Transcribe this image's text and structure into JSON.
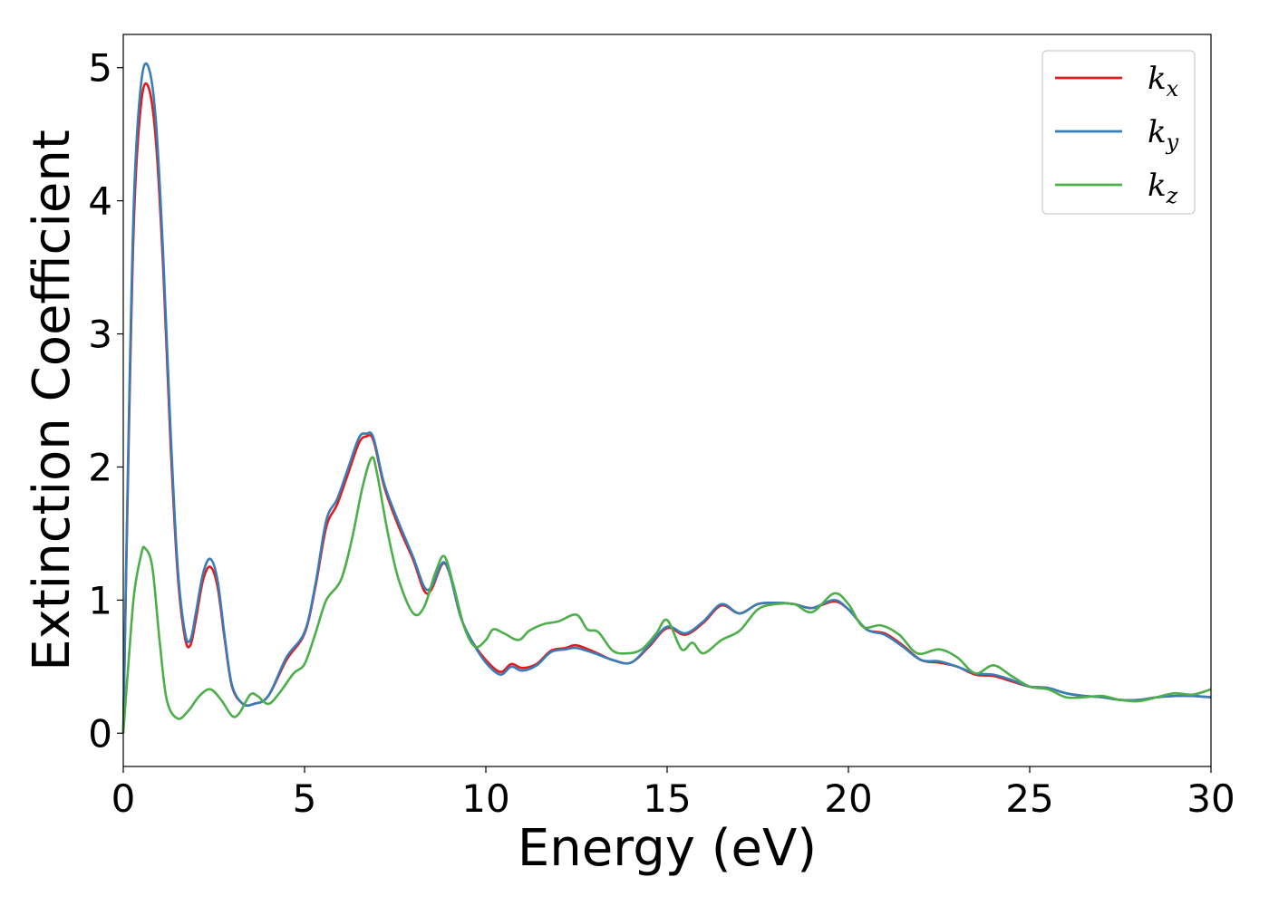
{
  "chart_data": {
    "type": "line",
    "title": "",
    "xlabel": "Energy (eV)",
    "ylabel": "Extinction Coefficient",
    "xlim": [
      0,
      30
    ],
    "ylim": [
      -0.25,
      5.25
    ],
    "xticks": [
      0,
      5,
      10,
      15,
      20,
      25,
      30
    ],
    "yticks": [
      0,
      1,
      2,
      3,
      4,
      5
    ],
    "grid": false,
    "legend_position": "top-right",
    "series": [
      {
        "name": "k",
        "subscript": "x",
        "color": "#e41a1c",
        "points": [
          [
            0,
            0
          ],
          [
            0.15,
            2.2
          ],
          [
            0.3,
            3.9
          ],
          [
            0.5,
            4.75
          ],
          [
            0.7,
            4.85
          ],
          [
            0.9,
            4.45
          ],
          [
            1.1,
            3.5
          ],
          [
            1.3,
            2.2
          ],
          [
            1.5,
            1.2
          ],
          [
            1.7,
            0.72
          ],
          [
            1.85,
            0.66
          ],
          [
            2.0,
            0.85
          ],
          [
            2.2,
            1.15
          ],
          [
            2.4,
            1.25
          ],
          [
            2.6,
            1.1
          ],
          [
            2.8,
            0.7
          ],
          [
            3.0,
            0.35
          ],
          [
            3.3,
            0.22
          ],
          [
            3.6,
            0.22
          ],
          [
            4.0,
            0.28
          ],
          [
            4.5,
            0.55
          ],
          [
            5.0,
            0.75
          ],
          [
            5.3,
            1.1
          ],
          [
            5.6,
            1.55
          ],
          [
            5.9,
            1.72
          ],
          [
            6.2,
            1.95
          ],
          [
            6.5,
            2.18
          ],
          [
            6.7,
            2.23
          ],
          [
            6.9,
            2.2
          ],
          [
            7.2,
            1.85
          ],
          [
            7.6,
            1.55
          ],
          [
            8.0,
            1.3
          ],
          [
            8.3,
            1.07
          ],
          [
            8.5,
            1.08
          ],
          [
            8.8,
            1.27
          ],
          [
            9.0,
            1.2
          ],
          [
            9.3,
            0.88
          ],
          [
            9.6,
            0.7
          ],
          [
            10.0,
            0.55
          ],
          [
            10.4,
            0.46
          ],
          [
            10.7,
            0.52
          ],
          [
            11.0,
            0.49
          ],
          [
            11.4,
            0.52
          ],
          [
            11.8,
            0.62
          ],
          [
            12.2,
            0.64
          ],
          [
            12.5,
            0.66
          ],
          [
            13.0,
            0.61
          ],
          [
            13.5,
            0.55
          ],
          [
            14.0,
            0.53
          ],
          [
            14.5,
            0.65
          ],
          [
            15.0,
            0.79
          ],
          [
            15.5,
            0.74
          ],
          [
            16.0,
            0.83
          ],
          [
            16.5,
            0.96
          ],
          [
            17.0,
            0.9
          ],
          [
            17.5,
            0.97
          ],
          [
            18.0,
            0.98
          ],
          [
            18.5,
            0.97
          ],
          [
            19.0,
            0.94
          ],
          [
            19.6,
            0.99
          ],
          [
            20.0,
            0.93
          ],
          [
            20.5,
            0.78
          ],
          [
            21.0,
            0.75
          ],
          [
            21.5,
            0.66
          ],
          [
            22.0,
            0.55
          ],
          [
            22.5,
            0.53
          ],
          [
            23.0,
            0.5
          ],
          [
            23.5,
            0.44
          ],
          [
            24.0,
            0.43
          ],
          [
            24.5,
            0.39
          ],
          [
            25.0,
            0.35
          ],
          [
            25.5,
            0.34
          ],
          [
            26.0,
            0.3
          ],
          [
            26.5,
            0.28
          ],
          [
            27.0,
            0.27
          ],
          [
            27.5,
            0.25
          ],
          [
            28.0,
            0.25
          ],
          [
            28.5,
            0.27
          ],
          [
            29.0,
            0.28
          ],
          [
            29.5,
            0.28
          ],
          [
            30.0,
            0.27
          ]
        ]
      },
      {
        "name": "k",
        "subscript": "y",
        "color": "#377eb8",
        "points": [
          [
            0,
            0
          ],
          [
            0.15,
            2.3
          ],
          [
            0.3,
            4.05
          ],
          [
            0.5,
            4.9
          ],
          [
            0.7,
            5.0
          ],
          [
            0.9,
            4.6
          ],
          [
            1.1,
            3.6
          ],
          [
            1.3,
            2.3
          ],
          [
            1.5,
            1.25
          ],
          [
            1.7,
            0.76
          ],
          [
            1.85,
            0.7
          ],
          [
            2.0,
            0.9
          ],
          [
            2.2,
            1.2
          ],
          [
            2.4,
            1.31
          ],
          [
            2.6,
            1.15
          ],
          [
            2.8,
            0.72
          ],
          [
            3.0,
            0.36
          ],
          [
            3.3,
            0.22
          ],
          [
            3.6,
            0.22
          ],
          [
            4.0,
            0.28
          ],
          [
            4.5,
            0.57
          ],
          [
            5.0,
            0.76
          ],
          [
            5.3,
            1.12
          ],
          [
            5.6,
            1.6
          ],
          [
            5.9,
            1.76
          ],
          [
            6.2,
            1.99
          ],
          [
            6.5,
            2.22
          ],
          [
            6.7,
            2.25
          ],
          [
            6.9,
            2.22
          ],
          [
            7.2,
            1.87
          ],
          [
            7.6,
            1.58
          ],
          [
            8.0,
            1.32
          ],
          [
            8.3,
            1.1
          ],
          [
            8.5,
            1.1
          ],
          [
            8.8,
            1.28
          ],
          [
            9.0,
            1.2
          ],
          [
            9.3,
            0.88
          ],
          [
            9.6,
            0.7
          ],
          [
            10.0,
            0.53
          ],
          [
            10.4,
            0.44
          ],
          [
            10.7,
            0.5
          ],
          [
            11.0,
            0.47
          ],
          [
            11.4,
            0.51
          ],
          [
            11.8,
            0.61
          ],
          [
            12.2,
            0.63
          ],
          [
            12.5,
            0.64
          ],
          [
            13.0,
            0.6
          ],
          [
            13.5,
            0.55
          ],
          [
            14.0,
            0.53
          ],
          [
            14.5,
            0.66
          ],
          [
            15.0,
            0.8
          ],
          [
            15.5,
            0.75
          ],
          [
            16.0,
            0.84
          ],
          [
            16.5,
            0.97
          ],
          [
            17.0,
            0.9
          ],
          [
            17.5,
            0.97
          ],
          [
            18.0,
            0.98
          ],
          [
            18.5,
            0.97
          ],
          [
            19.0,
            0.94
          ],
          [
            19.6,
            1.0
          ],
          [
            20.0,
            0.93
          ],
          [
            20.5,
            0.78
          ],
          [
            21.0,
            0.74
          ],
          [
            21.5,
            0.65
          ],
          [
            22.0,
            0.55
          ],
          [
            22.5,
            0.54
          ],
          [
            23.0,
            0.5
          ],
          [
            23.5,
            0.45
          ],
          [
            24.0,
            0.44
          ],
          [
            24.5,
            0.4
          ],
          [
            25.0,
            0.35
          ],
          [
            25.5,
            0.34
          ],
          [
            26.0,
            0.3
          ],
          [
            26.5,
            0.28
          ],
          [
            27.0,
            0.27
          ],
          [
            27.5,
            0.25
          ],
          [
            28.0,
            0.25
          ],
          [
            28.5,
            0.27
          ],
          [
            29.0,
            0.28
          ],
          [
            29.5,
            0.28
          ],
          [
            30.0,
            0.27
          ]
        ]
      },
      {
        "name": "k",
        "subscript": "z",
        "color": "#4daf4a",
        "points": [
          [
            0,
            0
          ],
          [
            0.15,
            0.55
          ],
          [
            0.3,
            1.05
          ],
          [
            0.5,
            1.35
          ],
          [
            0.6,
            1.39
          ],
          [
            0.8,
            1.25
          ],
          [
            1.0,
            0.7
          ],
          [
            1.2,
            0.25
          ],
          [
            1.5,
            0.11
          ],
          [
            1.8,
            0.17
          ],
          [
            2.1,
            0.28
          ],
          [
            2.4,
            0.33
          ],
          [
            2.7,
            0.25
          ],
          [
            3.0,
            0.13
          ],
          [
            3.2,
            0.15
          ],
          [
            3.5,
            0.29
          ],
          [
            3.7,
            0.28
          ],
          [
            4.0,
            0.22
          ],
          [
            4.3,
            0.3
          ],
          [
            4.7,
            0.45
          ],
          [
            5.0,
            0.52
          ],
          [
            5.3,
            0.75
          ],
          [
            5.6,
            1.0
          ],
          [
            6.0,
            1.15
          ],
          [
            6.3,
            1.45
          ],
          [
            6.6,
            1.85
          ],
          [
            6.85,
            2.07
          ],
          [
            7.0,
            1.95
          ],
          [
            7.3,
            1.5
          ],
          [
            7.6,
            1.15
          ],
          [
            8.0,
            0.9
          ],
          [
            8.3,
            0.95
          ],
          [
            8.6,
            1.2
          ],
          [
            8.85,
            1.33
          ],
          [
            9.1,
            1.12
          ],
          [
            9.4,
            0.8
          ],
          [
            9.7,
            0.65
          ],
          [
            10.0,
            0.7
          ],
          [
            10.2,
            0.78
          ],
          [
            10.5,
            0.75
          ],
          [
            10.9,
            0.7
          ],
          [
            11.2,
            0.77
          ],
          [
            11.6,
            0.82
          ],
          [
            12.0,
            0.84
          ],
          [
            12.5,
            0.89
          ],
          [
            12.8,
            0.78
          ],
          [
            13.1,
            0.76
          ],
          [
            13.5,
            0.62
          ],
          [
            13.9,
            0.6
          ],
          [
            14.3,
            0.63
          ],
          [
            14.7,
            0.75
          ],
          [
            15.0,
            0.85
          ],
          [
            15.4,
            0.63
          ],
          [
            15.7,
            0.68
          ],
          [
            16.0,
            0.6
          ],
          [
            16.5,
            0.7
          ],
          [
            17.0,
            0.77
          ],
          [
            17.5,
            0.93
          ],
          [
            18.0,
            0.97
          ],
          [
            18.5,
            0.97
          ],
          [
            19.0,
            0.91
          ],
          [
            19.6,
            1.05
          ],
          [
            20.0,
            0.97
          ],
          [
            20.4,
            0.8
          ],
          [
            20.9,
            0.81
          ],
          [
            21.4,
            0.74
          ],
          [
            21.9,
            0.6
          ],
          [
            22.5,
            0.63
          ],
          [
            23.0,
            0.57
          ],
          [
            23.5,
            0.45
          ],
          [
            24.0,
            0.51
          ],
          [
            24.5,
            0.43
          ],
          [
            25.0,
            0.35
          ],
          [
            25.5,
            0.33
          ],
          [
            26.0,
            0.27
          ],
          [
            26.5,
            0.27
          ],
          [
            27.0,
            0.28
          ],
          [
            27.5,
            0.25
          ],
          [
            28.0,
            0.24
          ],
          [
            28.5,
            0.27
          ],
          [
            29.0,
            0.3
          ],
          [
            29.5,
            0.29
          ],
          [
            30.0,
            0.33
          ]
        ]
      }
    ]
  }
}
